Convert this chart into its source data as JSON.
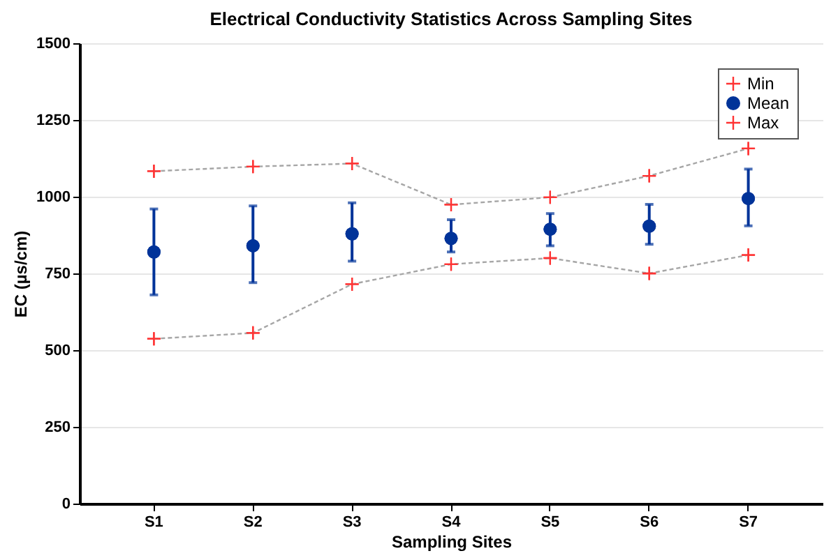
{
  "chart_data": {
    "type": "scatter",
    "title": "Electrical Conductivity Statistics Across Sampling Sites",
    "xlabel": "Sampling Sites",
    "ylabel": "EC (µs/cm)",
    "categories": [
      "S1",
      "S2",
      "S3",
      "S4",
      "S5",
      "S6",
      "S7"
    ],
    "series": [
      {
        "name": "Min",
        "type": "line",
        "color": "#ff3333",
        "marker": "cross",
        "line_style": "dashed",
        "values": [
          537,
          556,
          715,
          780,
          800,
          750,
          810
        ]
      },
      {
        "name": "Mean",
        "type": "scatter",
        "color": "#003399",
        "marker": "circle",
        "values": [
          820,
          840,
          879,
          864,
          894,
          904,
          994
        ],
        "errors": [
          [
            680,
            960
          ],
          [
            720,
            970
          ],
          [
            790,
            980
          ],
          [
            820,
            925
          ],
          [
            840,
            945
          ],
          [
            845,
            975
          ],
          [
            905,
            1090
          ]
        ]
      },
      {
        "name": "Max",
        "type": "line",
        "color": "#ff3333",
        "marker": "cross",
        "line_style": "dashed",
        "values": [
          1083,
          1098,
          1108,
          974,
          998,
          1068,
          1157
        ]
      }
    ],
    "ylim": [
      0,
      1500
    ],
    "yticks": [
      0,
      250,
      500,
      750,
      1000,
      1250,
      1500
    ],
    "grid": "y",
    "legend": "top right"
  }
}
